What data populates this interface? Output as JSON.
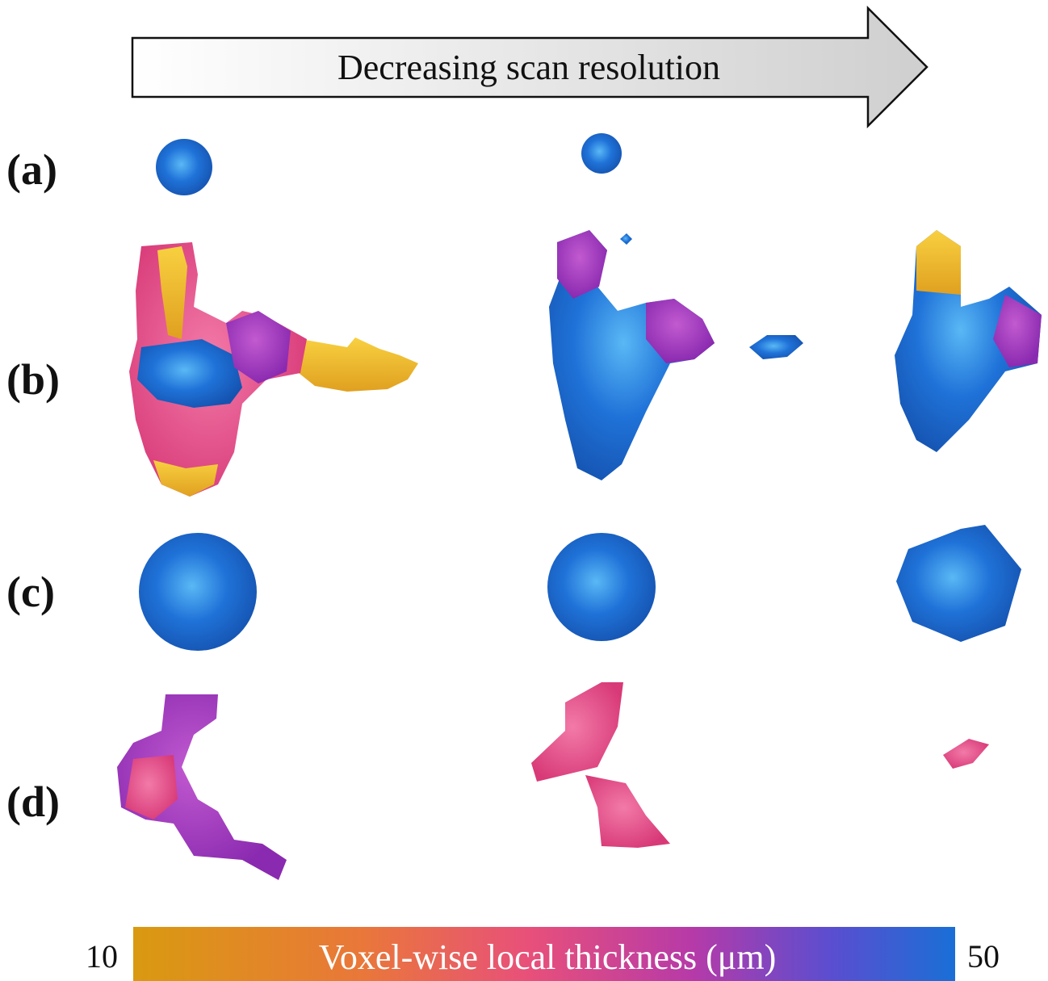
{
  "header": {
    "arrow_text": "Decreasing scan resolution"
  },
  "rows": [
    {
      "label": "(a)"
    },
    {
      "label": "(b)"
    },
    {
      "label": "(c)"
    },
    {
      "label": "(d)"
    }
  ],
  "colorbar": {
    "label": "Voxel-wise local thickness (μm)",
    "min": "10",
    "max": "50"
  }
}
